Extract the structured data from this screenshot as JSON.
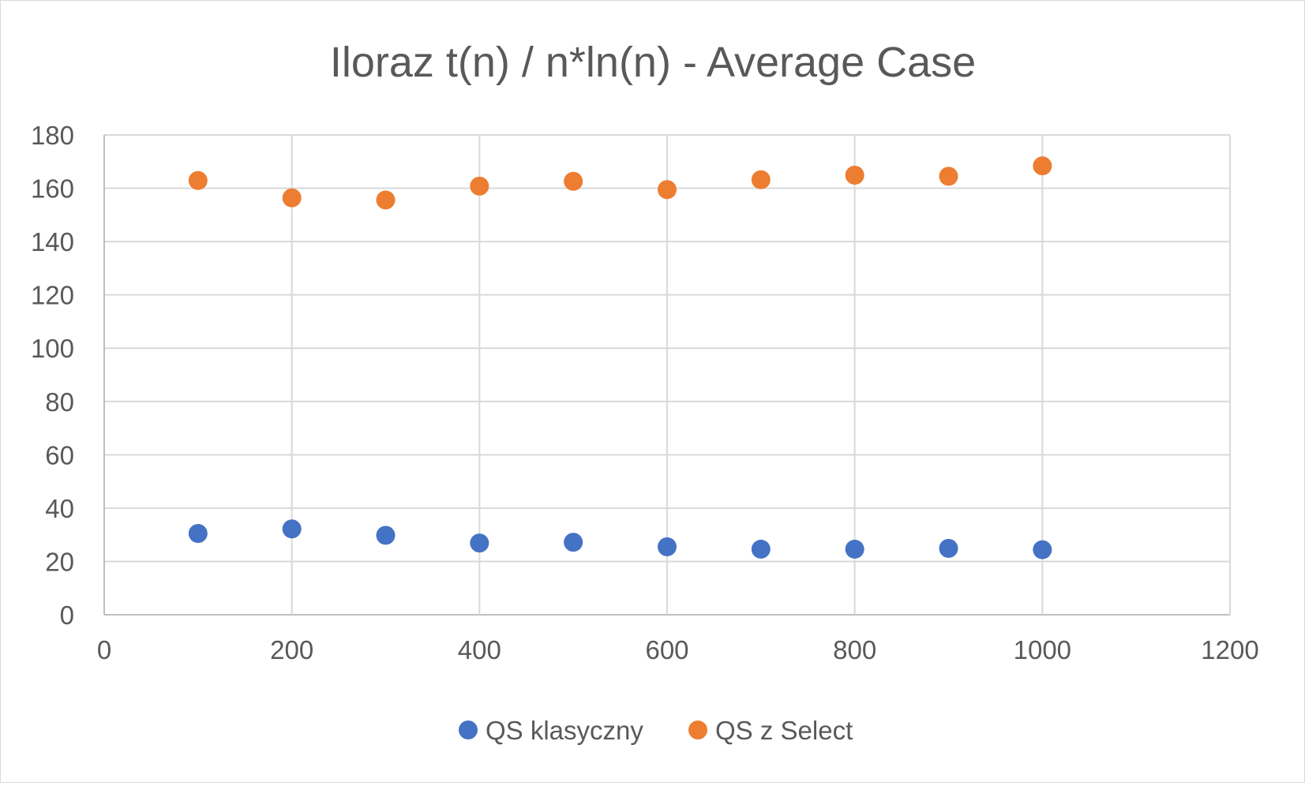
{
  "chart_data": {
    "type": "scatter",
    "title": "Iloraz t(n) / n*ln(n) - Average Case",
    "xlabel": "",
    "ylabel": "",
    "xlim": [
      0,
      1200
    ],
    "ylim": [
      0,
      180
    ],
    "xticks": [
      "0",
      "200",
      "400",
      "600",
      "800",
      "1000",
      "1200"
    ],
    "yticks": [
      "0",
      "20",
      "40",
      "60",
      "80",
      "100",
      "120",
      "140",
      "160",
      "180"
    ],
    "grid": true,
    "legend_position": "bottom",
    "series": [
      {
        "name": "QS klasyczny",
        "color": "#4472c4",
        "x": [
          100,
          200,
          300,
          400,
          500,
          600,
          700,
          800,
          900,
          1000
        ],
        "y": [
          30.5,
          32.2,
          29.8,
          26.9,
          27.2,
          25.5,
          24.6,
          24.6,
          24.9,
          24.4
        ]
      },
      {
        "name": "QS z Select",
        "color": "#ed7d31",
        "x": [
          100,
          200,
          300,
          400,
          500,
          600,
          700,
          800,
          900,
          1000
        ],
        "y": [
          162.9,
          156.4,
          155.6,
          160.8,
          162.6,
          159.5,
          163.2,
          164.9,
          164.5,
          168.4
        ]
      }
    ]
  }
}
